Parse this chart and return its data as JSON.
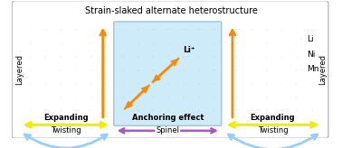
{
  "title": "Strain-slaked alternate heterostructure",
  "title_fontsize": 7.0,
  "li_color": "#55cc55",
  "li_edge": "#228822",
  "ni_color": "#cccccc",
  "ni_edge": "#888888",
  "mn_color": "#5599ee",
  "mn_edge": "#2255bb",
  "layered_left_label": "Layered",
  "layered_right_label": "Layered",
  "li_label": "Li",
  "ni_label": "Ni",
  "mn_label": "Mn",
  "expanding_label": "Expanding",
  "twisting_label": "Twisting",
  "anchoring_label": "Anchoring effect",
  "spinel_label": "Spinel",
  "li_plus_label": "Li⁺",
  "expand_arrow_color": "#eeee00",
  "twist_arrow_color": "#99ccff",
  "spinel_arrow_color": "#aa55cc",
  "orange_arrow_color": "#ff8800",
  "spinel_bg": "#c5e8f8",
  "R_large": 0.028,
  "R_small": 0.018
}
